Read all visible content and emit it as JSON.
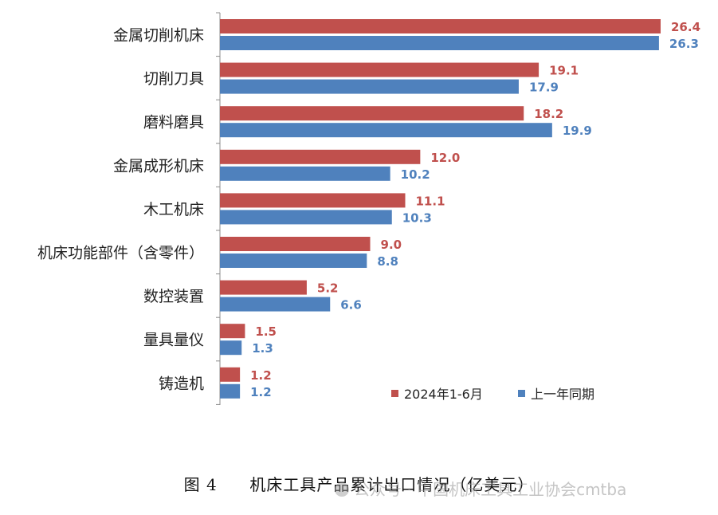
{
  "chart_data": {
    "type": "bar",
    "orientation": "horizontal",
    "categories": [
      "金属切削机床",
      "切削刀具",
      "磨料磨具",
      "金属成形机床",
      "木工机床",
      "机床功能部件（含零件）",
      "数控装置",
      "量具量仪",
      "铸造机"
    ],
    "series": [
      {
        "name": "2024年1-6月",
        "color": "#c0504d",
        "values": [
          26.4,
          19.1,
          18.2,
          12.0,
          11.1,
          9.0,
          5.2,
          1.5,
          1.2
        ]
      },
      {
        "name": "上一年同期",
        "color": "#4f81bd",
        "values": [
          26.3,
          17.9,
          19.9,
          10.2,
          10.3,
          8.8,
          6.6,
          1.3,
          1.2
        ]
      }
    ],
    "value_labels": [
      [
        "26.4",
        "19.1",
        "18.2",
        "12.0",
        "11.1",
        "9.0",
        "5.2",
        "1.5",
        "1.2"
      ],
      [
        "26.3",
        "17.9",
        "19.9",
        "10.2",
        "10.3",
        "8.8",
        "6.6",
        "1.3",
        "1.2"
      ]
    ],
    "xlim": [
      0,
      30
    ],
    "legend_position": "bottom-right",
    "grid": false
  },
  "caption": {
    "figure_no": "图 4",
    "title": "机床工具产品累计出口情况（亿美元）"
  },
  "watermark": "公众号 · 中国机床工具工业协会cmtba"
}
